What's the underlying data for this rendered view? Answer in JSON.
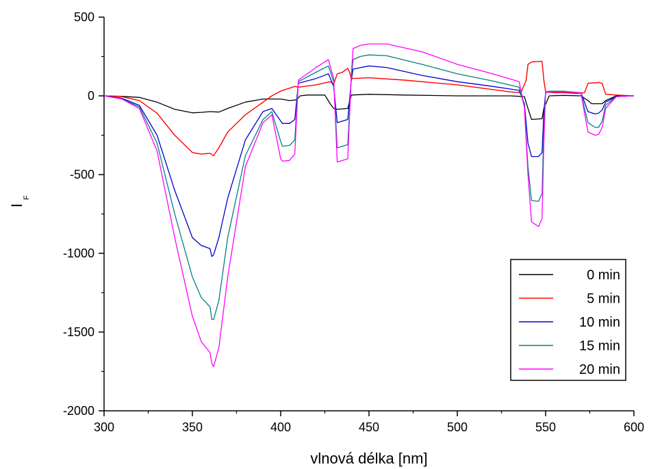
{
  "chart_data": {
    "type": "line",
    "title": "",
    "xlabel": "vlnová délka [nm]",
    "ylabel_main": "I",
    "ylabel_sub": "F",
    "xlim": [
      300,
      600
    ],
    "ylim": [
      -2000,
      500
    ],
    "xticks": [
      300,
      350,
      400,
      450,
      500,
      550,
      600
    ],
    "yticks": [
      500,
      0,
      -500,
      -1000,
      -1500,
      -2000
    ],
    "xtick_labels": [
      "300",
      "350",
      "400",
      "450",
      "500",
      "550",
      "600"
    ],
    "ytick_labels": [
      "500",
      "0",
      "-500",
      "-1000",
      "-1500",
      "-2000"
    ],
    "grid": false,
    "legend_position": "bottom-right",
    "series": [
      {
        "name": "0 min",
        "color": "#000000",
        "x": [
          300,
          310,
          320,
          330,
          340,
          350,
          355,
          360,
          365,
          370,
          380,
          390,
          400,
          405,
          409,
          411,
          415,
          425,
          428,
          430,
          432,
          438,
          440,
          450,
          470,
          500,
          530,
          538,
          540,
          542,
          548,
          549,
          552,
          560,
          570,
          574,
          576,
          582,
          584,
          590,
          600
        ],
        "y": [
          0,
          -3,
          -10,
          -40,
          -85,
          -108,
          -105,
          -100,
          -103,
          -80,
          -40,
          -20,
          -20,
          -30,
          -25,
          0,
          5,
          5,
          -50,
          -80,
          -85,
          -80,
          5,
          10,
          5,
          0,
          0,
          -5,
          -80,
          -150,
          -145,
          -80,
          0,
          3,
          0,
          -30,
          -50,
          -50,
          -30,
          0,
          0
        ]
      },
      {
        "name": "5 min",
        "color": "#ff0000",
        "x": [
          300,
          310,
          320,
          330,
          340,
          350,
          355,
          360,
          362,
          365,
          370,
          380,
          390,
          395,
          400,
          408,
          410,
          420,
          428,
          430,
          432,
          435,
          438,
          439,
          440,
          450,
          470,
          500,
          520,
          530,
          536,
          539,
          540,
          542,
          548,
          549,
          550,
          555,
          560,
          568,
          572,
          574,
          580,
          582,
          584,
          590,
          600
        ],
        "y": [
          0,
          -5,
          -30,
          -110,
          -250,
          -360,
          -370,
          -365,
          -380,
          -330,
          -230,
          -120,
          -40,
          0,
          30,
          60,
          55,
          70,
          90,
          75,
          140,
          150,
          175,
          150,
          110,
          115,
          100,
          70,
          40,
          25,
          20,
          100,
          200,
          215,
          220,
          100,
          25,
          20,
          20,
          15,
          20,
          80,
          85,
          80,
          10,
          5,
          0
        ],
        "stroke_width": 1.4
      },
      {
        "name": "10 min",
        "color": "#0000cc",
        "x": [
          300,
          310,
          320,
          330,
          340,
          350,
          355,
          360,
          361,
          362,
          365,
          370,
          380,
          390,
          395,
          400,
          401,
          405,
          408,
          410,
          420,
          427,
          430,
          432,
          438,
          440,
          441,
          450,
          460,
          480,
          500,
          520,
          535,
          538,
          540,
          542,
          546,
          548,
          549,
          550,
          552,
          560,
          570,
          572,
          574,
          578,
          580,
          582,
          584,
          590,
          600
        ],
        "y": [
          0,
          -15,
          -60,
          -250,
          -600,
          -900,
          -950,
          -970,
          -1020,
          -1010,
          -900,
          -650,
          -280,
          -100,
          -80,
          -160,
          -175,
          -175,
          -150,
          80,
          110,
          140,
          60,
          -170,
          -150,
          100,
          170,
          190,
          180,
          130,
          90,
          60,
          35,
          -50,
          -300,
          -385,
          -385,
          -360,
          -100,
          20,
          25,
          25,
          20,
          -40,
          -100,
          -115,
          -110,
          -90,
          -40,
          -5,
          0
        ]
      },
      {
        "name": "15 min",
        "color": "#008080",
        "x": [
          300,
          310,
          320,
          330,
          340,
          350,
          355,
          360,
          361,
          362,
          365,
          370,
          380,
          390,
          395,
          400,
          401,
          405,
          408,
          410,
          420,
          427,
          430,
          432,
          438,
          440,
          441,
          445,
          450,
          460,
          480,
          500,
          520,
          535,
          538,
          540,
          542,
          546,
          548,
          549,
          550,
          552,
          560,
          570,
          572,
          574,
          578,
          580,
          582,
          584,
          590,
          600
        ],
        "y": [
          0,
          -18,
          -70,
          -300,
          -750,
          -1150,
          -1280,
          -1340,
          -1420,
          -1420,
          -1300,
          -900,
          -380,
          -150,
          -100,
          -290,
          -320,
          -315,
          -280,
          90,
          150,
          190,
          90,
          -330,
          -310,
          120,
          230,
          250,
          260,
          255,
          200,
          140,
          95,
          55,
          -70,
          -450,
          -665,
          -670,
          -620,
          -200,
          25,
          30,
          30,
          20,
          -80,
          -170,
          -200,
          -200,
          -160,
          -60,
          -5,
          0
        ]
      },
      {
        "name": "20 min",
        "color": "#ff00ff",
        "x": [
          300,
          310,
          320,
          330,
          340,
          350,
          355,
          360,
          361,
          362,
          365,
          370,
          380,
          390,
          395,
          400,
          401,
          405,
          408,
          410,
          420,
          427,
          430,
          432,
          438,
          440,
          441,
          445,
          450,
          460,
          480,
          500,
          520,
          535,
          538,
          540,
          542,
          546,
          548,
          549,
          550,
          552,
          560,
          570,
          572,
          574,
          578,
          580,
          582,
          584,
          590,
          600
        ],
        "y": [
          0,
          -20,
          -80,
          -350,
          -900,
          -1400,
          -1560,
          -1630,
          -1700,
          -1720,
          -1600,
          -1150,
          -450,
          -170,
          -120,
          -400,
          -415,
          -410,
          -370,
          100,
          180,
          230,
          110,
          -420,
          -400,
          140,
          300,
          320,
          330,
          330,
          280,
          200,
          140,
          90,
          -70,
          -500,
          -800,
          -830,
          -780,
          -300,
          20,
          25,
          25,
          20,
          -110,
          -230,
          -250,
          -245,
          -200,
          -80,
          -5,
          0
        ]
      }
    ]
  }
}
